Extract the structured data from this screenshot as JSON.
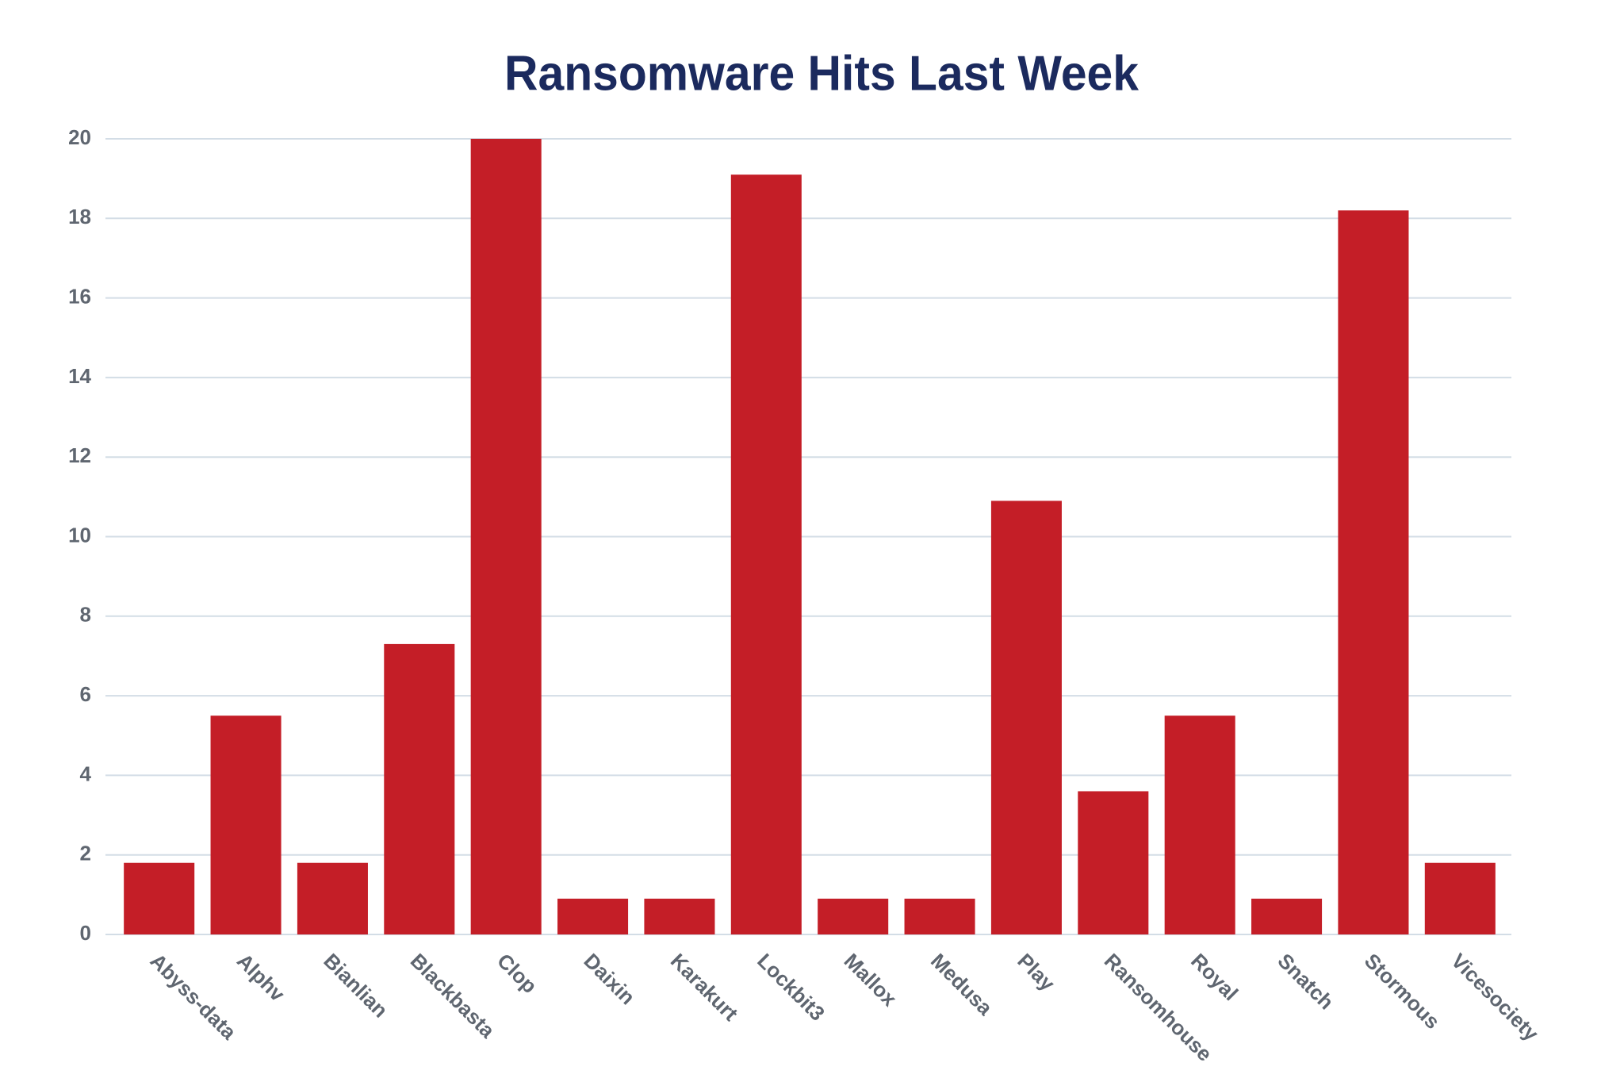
{
  "chart_data": {
    "type": "bar",
    "title": "Ransomware Hits Last Week",
    "categories": [
      "Abyss-data",
      "Alphv",
      "Bianlian",
      "Blackbasta",
      "Clop",
      "Daixin",
      "Karakurt",
      "Lockbit3",
      "Mallox",
      "Medusa",
      "Play",
      "Ransomhouse",
      "Royal",
      "Snatch",
      "Stormous",
      "Vicesociety"
    ],
    "values": [
      1.8,
      5.5,
      1.8,
      7.3,
      20,
      0.9,
      0.9,
      19.1,
      0.9,
      0.9,
      10.9,
      3.6,
      5.5,
      0.9,
      18.2,
      1.8
    ],
    "color": "#c41e27",
    "ylim": [
      0,
      20
    ],
    "yticks": [
      0,
      2,
      4,
      6,
      8,
      10,
      12,
      14,
      16,
      18,
      20
    ],
    "grid": true
  }
}
